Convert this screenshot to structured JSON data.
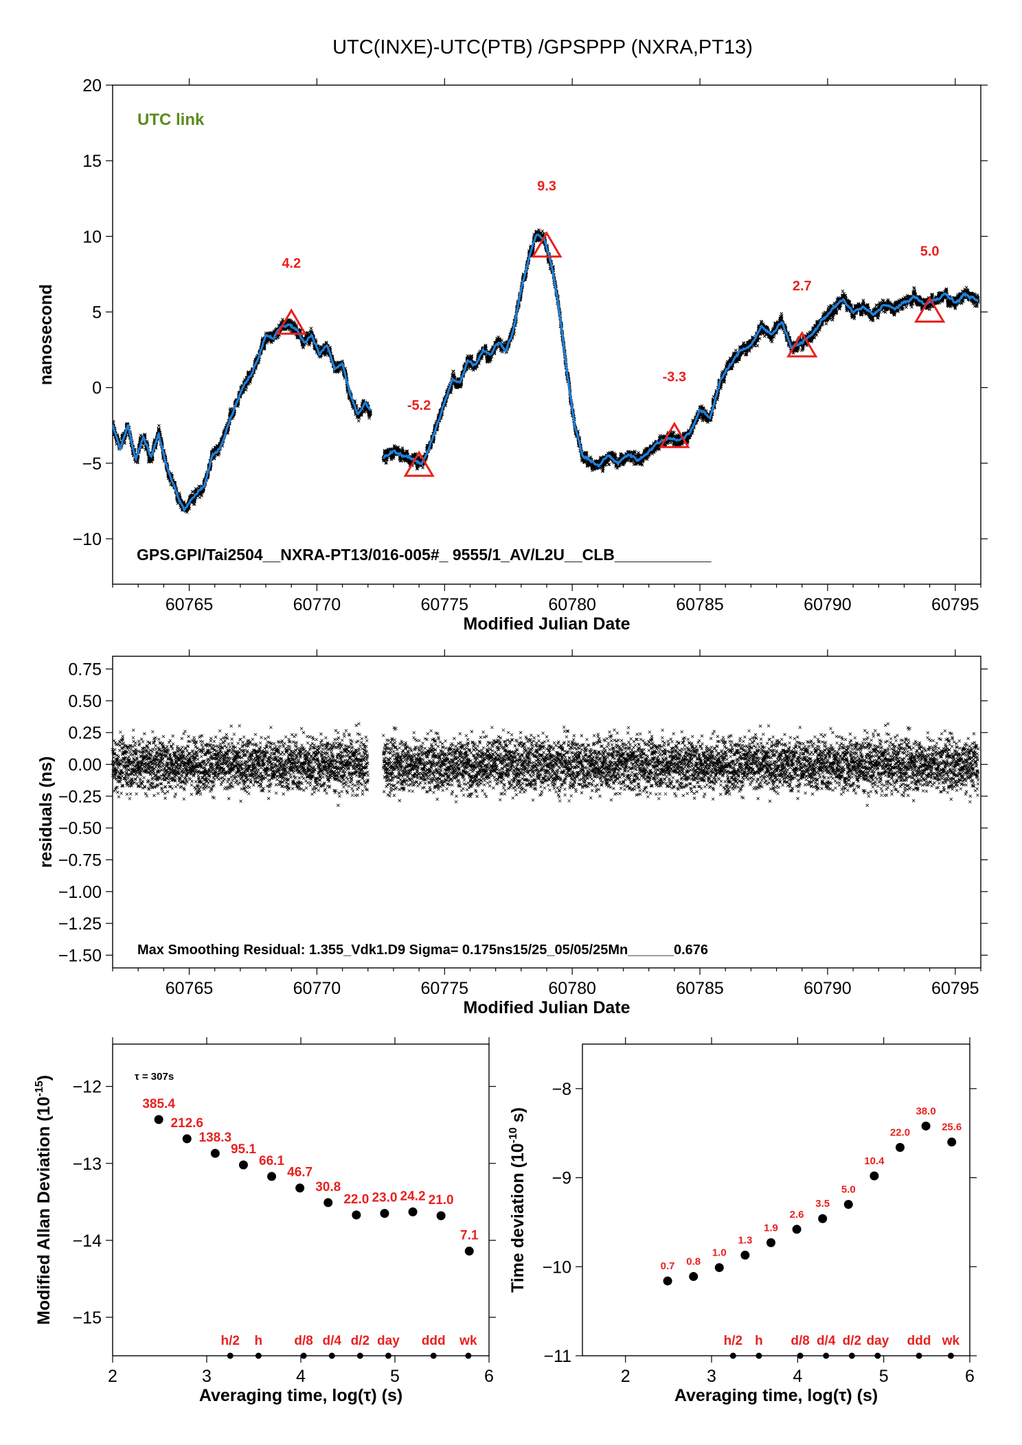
{
  "figure_title": "UTC(INXE)-UTC(PTB)  /GPSPPP  (NXRA,PT13)",
  "colors": {
    "red": "#e8211e",
    "blue": "#1e7fd8",
    "green": "#5a8c1e",
    "black": "#000000"
  },
  "chart_data": [
    {
      "id": "utc-link",
      "type": "line",
      "subtitle": "UTC link",
      "footer": "GPS.GPI/Tai2504__NXRA-PT13/016-005#_  9555/1_AV/L2U__CLB___________",
      "xlabel": "Modified Julian Date",
      "ylabel": "nanosecond",
      "xlim": [
        60762,
        60796
      ],
      "ylim": [
        -13,
        20
      ],
      "xticks": [
        60765,
        60770,
        60775,
        60780,
        60785,
        60790,
        60795
      ],
      "yticks": [
        -10,
        -5,
        0,
        5,
        10,
        15,
        20
      ],
      "ytick_labels": [
        "−10",
        "−5",
        "0",
        "5",
        "10",
        "15",
        "20"
      ],
      "series": [
        {
          "style": "smoothed",
          "x": [
            60762.0,
            60762.3,
            60762.6,
            60762.9,
            60763.2,
            60763.5,
            60763.8,
            60764.1,
            60764.4,
            60764.6,
            60764.8,
            60765.0,
            60765.3,
            60765.6,
            60765.9,
            60766.2,
            60766.5,
            60766.8,
            60767.1,
            60767.4,
            60767.7,
            60768.0,
            60768.3,
            60768.6,
            60768.9,
            60769.2,
            60769.5,
            60769.8,
            60770.1,
            60770.4,
            60770.7,
            60771.0,
            60771.3,
            60771.6,
            60771.9,
            60772.1
          ],
          "values": [
            -2.5,
            -4.0,
            -2.5,
            -4.8,
            -3.2,
            -4.6,
            -3.0,
            -5.2,
            -6.5,
            -7.4,
            -8.0,
            -7.6,
            -7.0,
            -6.5,
            -4.5,
            -4.0,
            -2.5,
            -1.2,
            0.0,
            0.8,
            2.0,
            3.5,
            3.3,
            4.0,
            4.2,
            3.8,
            3.0,
            3.5,
            2.2,
            2.8,
            1.2,
            1.6,
            -0.5,
            -1.8,
            -1.0,
            -1.6
          ]
        },
        {
          "style": "smoothed",
          "x": [
            60772.6,
            60773.0,
            60773.4,
            60773.8,
            60774.1,
            60774.4,
            60774.7,
            60775.0,
            60775.3,
            60775.6,
            60775.9,
            60776.2,
            60776.5,
            60776.8,
            60777.1,
            60777.4,
            60777.7,
            60778.0,
            60778.3,
            60778.6,
            60778.9,
            60779.2,
            60779.5,
            60779.8,
            60780.1,
            60780.4,
            60780.7,
            60781.0,
            60781.4,
            60781.8,
            60782.2,
            60782.6,
            60783.0,
            60783.4,
            60783.8,
            60784.2,
            60784.6,
            60785.0,
            60785.4,
            60785.8,
            60786.2,
            60786.6,
            60787.0,
            60787.4,
            60787.8,
            60788.2,
            60788.6,
            60789.0,
            60789.4,
            60789.8,
            60790.2,
            60790.6,
            60791.0,
            60791.4,
            60791.8,
            60792.2,
            60792.6,
            60793.0,
            60793.4,
            60793.8,
            60794.2,
            60794.6,
            60795.0,
            60795.4,
            60795.9
          ],
          "values": [
            -4.7,
            -4.2,
            -4.5,
            -4.8,
            -5.0,
            -4.0,
            -2.5,
            -1.0,
            0.5,
            0.3,
            1.8,
            1.5,
            2.5,
            2.2,
            3.0,
            2.5,
            3.8,
            6.5,
            8.5,
            10.2,
            9.8,
            8.0,
            5.0,
            1.0,
            -2.5,
            -4.5,
            -4.8,
            -5.2,
            -4.5,
            -5.0,
            -4.4,
            -4.8,
            -4.2,
            -3.6,
            -3.3,
            -3.5,
            -3.0,
            -1.5,
            -2.0,
            0.5,
            1.5,
            2.5,
            2.8,
            4.0,
            3.5,
            4.4,
            2.6,
            3.0,
            3.5,
            4.5,
            5.2,
            5.8,
            5.0,
            5.3,
            4.8,
            5.5,
            5.2,
            5.6,
            6.0,
            5.5,
            5.8,
            6.2,
            5.6,
            6.2,
            5.7
          ]
        }
      ],
      "markers": [
        {
          "x": 60769.0,
          "y": 4.2,
          "label": "4.2"
        },
        {
          "x": 60774.0,
          "y": -5.2,
          "label": "-5.2"
        },
        {
          "x": 60779.0,
          "y": 9.3,
          "label": "9.3"
        },
        {
          "x": 60784.0,
          "y": -3.3,
          "label": "-3.3"
        },
        {
          "x": 60789.0,
          "y": 2.7,
          "label": "2.7"
        },
        {
          "x": 60794.0,
          "y": 5.0,
          "label": "5.0"
        }
      ]
    },
    {
      "id": "residuals",
      "type": "scatter",
      "footer": "Max Smoothing Residual: 1.355_Vdk1.D9  Sigma= 0.175ns15/25_05/05/25Mn______0.676",
      "xlabel": "Modified Julian Date",
      "ylabel": "residuals (ns)",
      "xlim": [
        60762,
        60796
      ],
      "ylim": [
        -1.6,
        0.85
      ],
      "xticks": [
        60765,
        60770,
        60775,
        60780,
        60785,
        60790,
        60795
      ],
      "yticks": [
        0.75,
        0.5,
        0.25,
        0.0,
        -0.25,
        -0.5,
        -0.75,
        -1.0,
        -1.25,
        -1.5
      ],
      "ytick_labels": [
        "0.75",
        "0.50",
        "0.25",
        "0.00",
        "−0.25",
        "−0.50",
        "−0.75",
        "−1.00",
        "−1.25",
        "−1.50"
      ],
      "x_ranges": [
        [
          60762.0,
          60772.0
        ],
        [
          60772.6,
          60795.9
        ]
      ],
      "sigma": 0.175
    },
    {
      "id": "mdev",
      "type": "scatter",
      "annotation": "τ = 307s",
      "xlabel": "Averaging time, log(τ) (s)",
      "ylabel": "Modified Allan Deviation (10",
      "ylabel_exp": "-15",
      "xlim": [
        2,
        6
      ],
      "ylim": [
        -15.5,
        -11.45
      ],
      "xticks": [
        2,
        3,
        4,
        5,
        6
      ],
      "yticks": [
        -12,
        -13,
        -14,
        -15
      ],
      "ytick_labels": [
        "−12",
        "−13",
        "−14",
        "−15"
      ],
      "x": [
        2.49,
        2.79,
        3.09,
        3.39,
        3.69,
        3.99,
        4.29,
        4.59,
        4.89,
        5.19,
        5.49,
        5.79
      ],
      "values": [
        -12.43,
        -12.68,
        -12.87,
        -13.02,
        -13.17,
        -13.32,
        -13.51,
        -13.67,
        -13.65,
        -13.63,
        -13.68,
        -14.14
      ],
      "point_labels": [
        "385.4",
        "212.6",
        "138.3",
        "95.1",
        "66.1",
        "46.7",
        "30.8",
        "22.0",
        "23.0",
        "24.2",
        "21.0",
        "7.1"
      ],
      "markers": [
        {
          "x": 3.25,
          "label": "h/2"
        },
        {
          "x": 3.55,
          "label": "h"
        },
        {
          "x": 4.03,
          "label": "d/8"
        },
        {
          "x": 4.33,
          "label": "d/4"
        },
        {
          "x": 4.63,
          "label": "d/2"
        },
        {
          "x": 4.93,
          "label": "day"
        },
        {
          "x": 5.41,
          "label": "ddd"
        },
        {
          "x": 5.78,
          "label": "wk"
        }
      ]
    },
    {
      "id": "tdev",
      "type": "scatter",
      "xlabel": "Averaging time, log(τ) (s)",
      "ylabel": "Time deviation (10",
      "ylabel_exp": "-10",
      "ylabel_unit": " s)",
      "xlim": [
        1.5,
        6
      ],
      "ylim": [
        -11.0,
        -7.5
      ],
      "xticks": [
        2,
        3,
        4,
        5,
        6
      ],
      "yticks": [
        -8,
        -9,
        -10,
        -11
      ],
      "ytick_labels": [
        "−8",
        "−9",
        "−10",
        "−11"
      ],
      "x": [
        2.49,
        2.79,
        3.09,
        3.39,
        3.69,
        3.99,
        4.29,
        4.59,
        4.89,
        5.19,
        5.49,
        5.79
      ],
      "values": [
        -10.16,
        -10.11,
        -10.01,
        -9.87,
        -9.73,
        -9.58,
        -9.46,
        -9.3,
        -8.98,
        -8.66,
        -8.42,
        -8.6
      ],
      "point_labels": [
        "0.7",
        "0.8",
        "1.0",
        "1.3",
        "1.9",
        "2.6",
        "3.5",
        "5.0",
        "10.4",
        "22.0",
        "38.0",
        "25.6"
      ],
      "markers": [
        {
          "x": 3.25,
          "label": "h/2"
        },
        {
          "x": 3.55,
          "label": "h"
        },
        {
          "x": 4.03,
          "label": "d/8"
        },
        {
          "x": 4.33,
          "label": "d/4"
        },
        {
          "x": 4.63,
          "label": "d/2"
        },
        {
          "x": 4.93,
          "label": "day"
        },
        {
          "x": 5.41,
          "label": "ddd"
        },
        {
          "x": 5.78,
          "label": "wk"
        }
      ]
    }
  ]
}
